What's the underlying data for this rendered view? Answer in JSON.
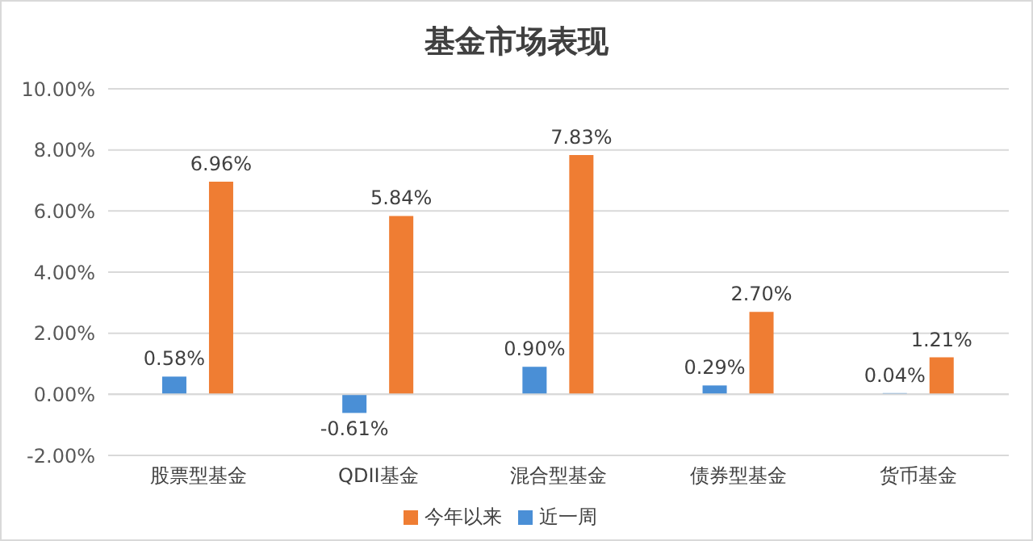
{
  "chart_data": {
    "type": "bar",
    "title": "基金市场表现",
    "categories": [
      "股票型基金",
      "QDII基金",
      "混合型基金",
      "债券型基金",
      "货币基金"
    ],
    "series": [
      {
        "name": "近一周",
        "color": "#4a8fd6",
        "values": [
          0.58,
          -0.61,
          0.9,
          0.29,
          0.04
        ],
        "value_labels": [
          "0.58%",
          "-0.61%",
          "0.90%",
          "0.29%",
          "0.04%"
        ]
      },
      {
        "name": "今年以来",
        "color": "#ef7d33",
        "values": [
          6.96,
          5.84,
          7.83,
          2.7,
          1.21
        ],
        "value_labels": [
          "6.96%",
          "5.84%",
          "7.83%",
          "2.70%",
          "1.21%"
        ]
      }
    ],
    "ylim": [
      -2,
      10
    ],
    "yticks": [
      {
        "value": -2,
        "label": "-2.00%"
      },
      {
        "value": 0,
        "label": "0.00%"
      },
      {
        "value": 2,
        "label": "2.00%"
      },
      {
        "value": 4,
        "label": "4.00%"
      },
      {
        "value": 6,
        "label": "6.00%"
      },
      {
        "value": 8,
        "label": "8.00%"
      },
      {
        "value": 10,
        "label": "10.00%"
      }
    ],
    "grid": "y",
    "legend": "bottom"
  }
}
